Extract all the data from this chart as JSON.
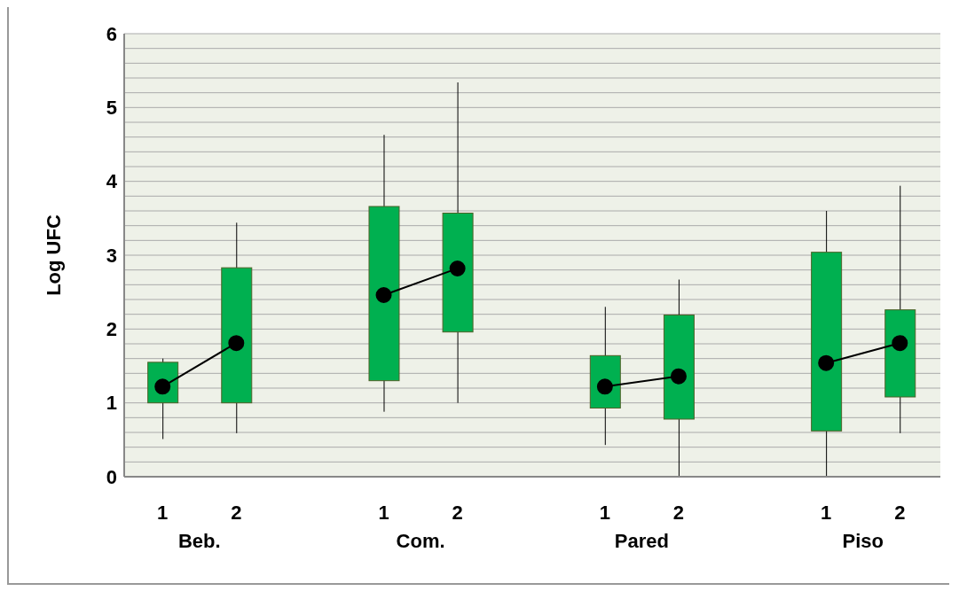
{
  "chart_data": {
    "type": "candlestick",
    "ylabel": "Log UFC",
    "categories": [
      "1",
      "2",
      null,
      "1",
      "2",
      null,
      "1",
      "2",
      null,
      "1",
      "2"
    ],
    "annotations": [
      "Beb.",
      "Com.",
      "Pared",
      "Piso"
    ],
    "color": "#00b050",
    "ohlc": [
      [
        1.0,
        1.6,
        0.51,
        1.55
      ],
      [
        1.0,
        3.44,
        0.59,
        2.83
      ],
      null,
      [
        1.3,
        4.63,
        0.88,
        3.66
      ],
      [
        1.96,
        5.34,
        1.0,
        3.57
      ],
      null,
      [
        0.93,
        2.3,
        0.43,
        1.64
      ],
      [
        0.78,
        2.67,
        0,
        2.19
      ],
      null,
      [
        0.62,
        3.6,
        0,
        3.04
      ],
      [
        1.08,
        3.94,
        0.59,
        2.26
      ]
    ],
    "series": [
      {
        "type": "line",
        "color": "#000000",
        "values": [
          1.22,
          1.81,
          null,
          2.46,
          2.82,
          null,
          1.22,
          1.36,
          null,
          1.54,
          1.81
        ]
      }
    ],
    "marker": "circle",
    "ylim": [
      0,
      6
    ],
    "yticks": [
      0,
      {
        "value": 0.2,
        "label": null
      },
      {
        "value": 0.4,
        "label": null
      },
      {
        "value": 0.6,
        "label": null
      },
      {
        "value": 0.8,
        "label": null
      },
      1,
      {
        "value": 1.2,
        "label": null
      },
      {
        "value": 1.4,
        "label": null
      },
      {
        "value": 1.6,
        "label": null
      },
      {
        "value": 1.8,
        "label": null
      },
      2,
      {
        "value": 2.2,
        "label": null
      },
      {
        "value": 2.4,
        "label": null
      },
      {
        "value": 2.6,
        "label": null
      },
      {
        "value": 2.8,
        "label": null
      },
      3,
      {
        "value": 3.2,
        "label": null
      },
      {
        "value": 3.4,
        "label": null
      },
      {
        "value": 3.6,
        "label": null
      },
      {
        "value": 3.8,
        "label": null
      },
      4,
      {
        "value": 4.2,
        "label": null
      },
      {
        "value": 4.4,
        "label": null
      },
      {
        "value": 4.6,
        "label": null
      },
      {
        "value": 4.8,
        "label": null
      },
      5,
      {
        "value": 5.2,
        "label": null
      },
      {
        "value": 5.4,
        "label": null
      },
      {
        "value": 5.6,
        "label": null
      },
      {
        "value": 5.8,
        "label": null
      },
      6
    ],
    "grid": "y"
  }
}
